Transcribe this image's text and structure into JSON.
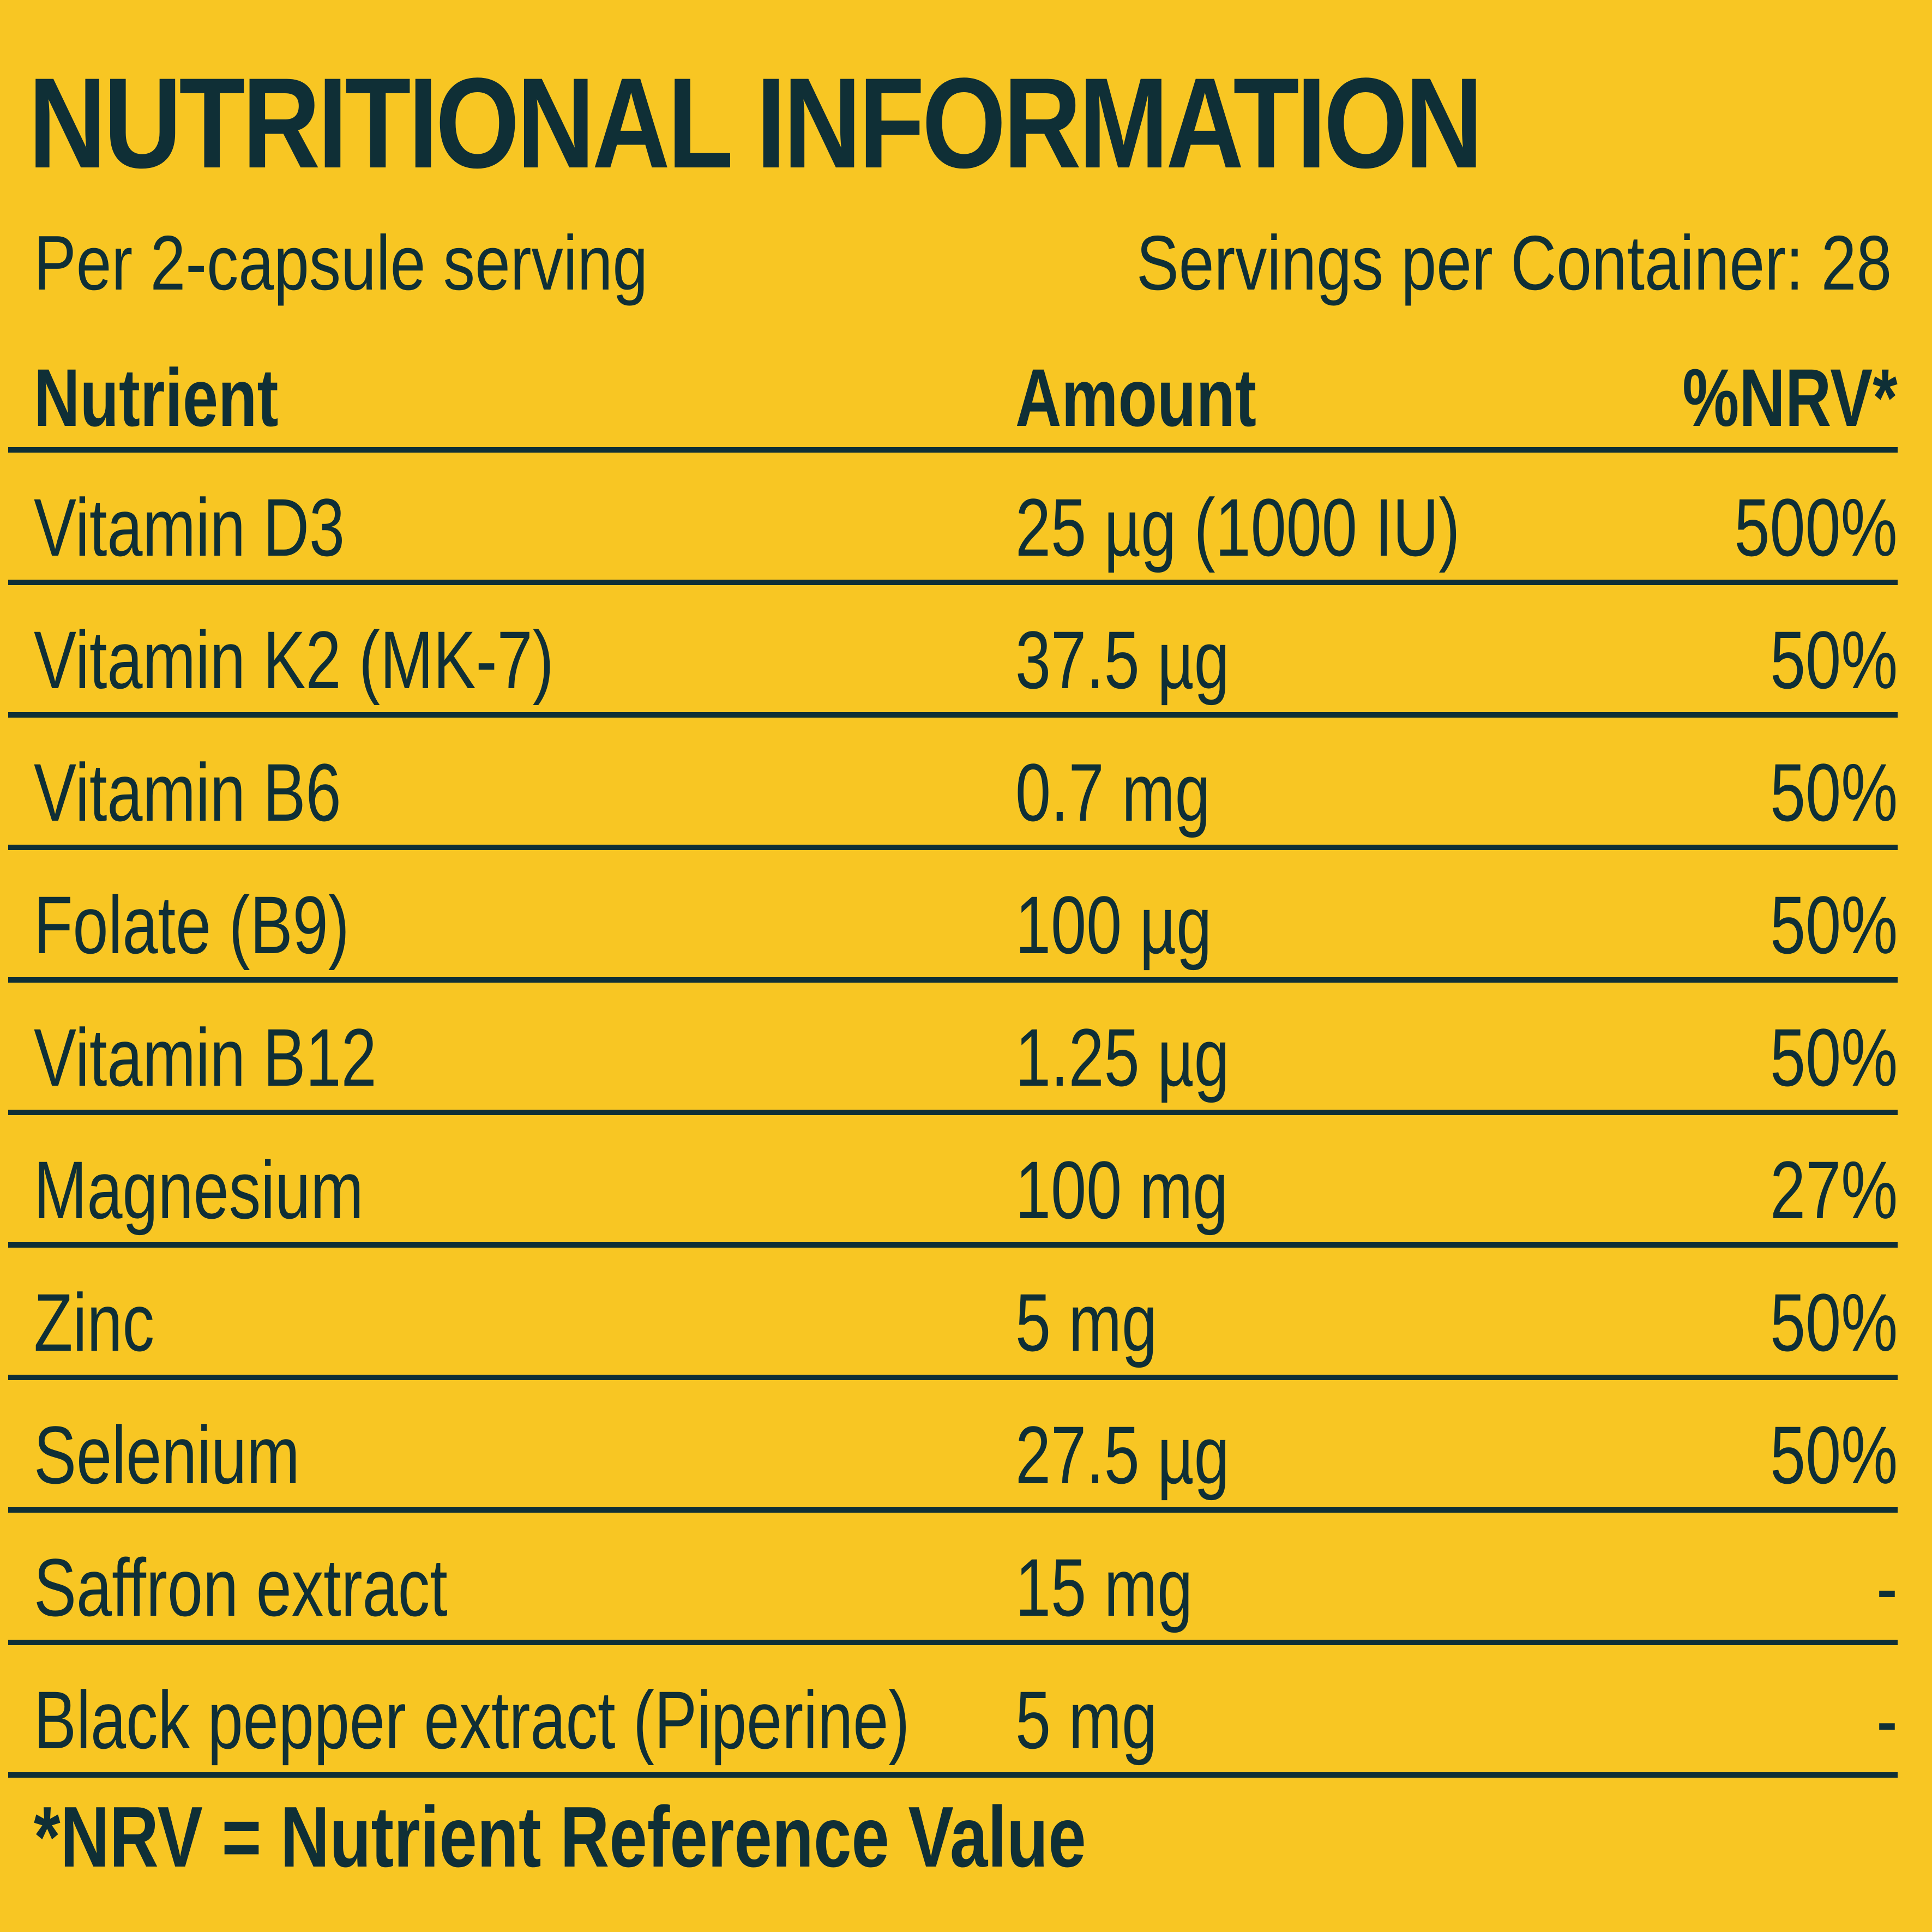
{
  "colors": {
    "background": "#F8C623",
    "text": "#0F2F36",
    "rule": "#0F2F36"
  },
  "label": {
    "title": "NUTRITIONAL INFORMATION",
    "serving_text": "Per 2-capsule serving",
    "servings_text": "Servings per Container: 28",
    "footnote": "*NRV = Nutrient Reference Value"
  },
  "table": {
    "headers": {
      "nutrient": "Nutrient",
      "amount": "Amount",
      "nrv": "%NRV*"
    },
    "rows": [
      {
        "nutrient": "Vitamin D3",
        "amount": "25 µg (1000 IU)",
        "nrv": "500%"
      },
      {
        "nutrient": "Vitamin K2 (MK-7)",
        "amount": "37.5 µg",
        "nrv": "50%"
      },
      {
        "nutrient": "Vitamin B6",
        "amount": "0.7 mg",
        "nrv": "50%"
      },
      {
        "nutrient": "Folate (B9)",
        "amount": "100 µg",
        "nrv": "50%"
      },
      {
        "nutrient": "Vitamin B12",
        "amount": "1.25 µg",
        "nrv": "50%"
      },
      {
        "nutrient": "Magnesium",
        "amount": "100 mg",
        "nrv": "27%"
      },
      {
        "nutrient": "Zinc",
        "amount": "5 mg",
        "nrv": "50%"
      },
      {
        "nutrient": "Selenium",
        "amount": "27.5 µg",
        "nrv": "50%"
      },
      {
        "nutrient": "Saffron extract",
        "amount": "15 mg",
        "nrv": "-"
      },
      {
        "nutrient": "Black pepper extract (Piperine)",
        "amount": "5 mg",
        "nrv": "-"
      }
    ]
  }
}
